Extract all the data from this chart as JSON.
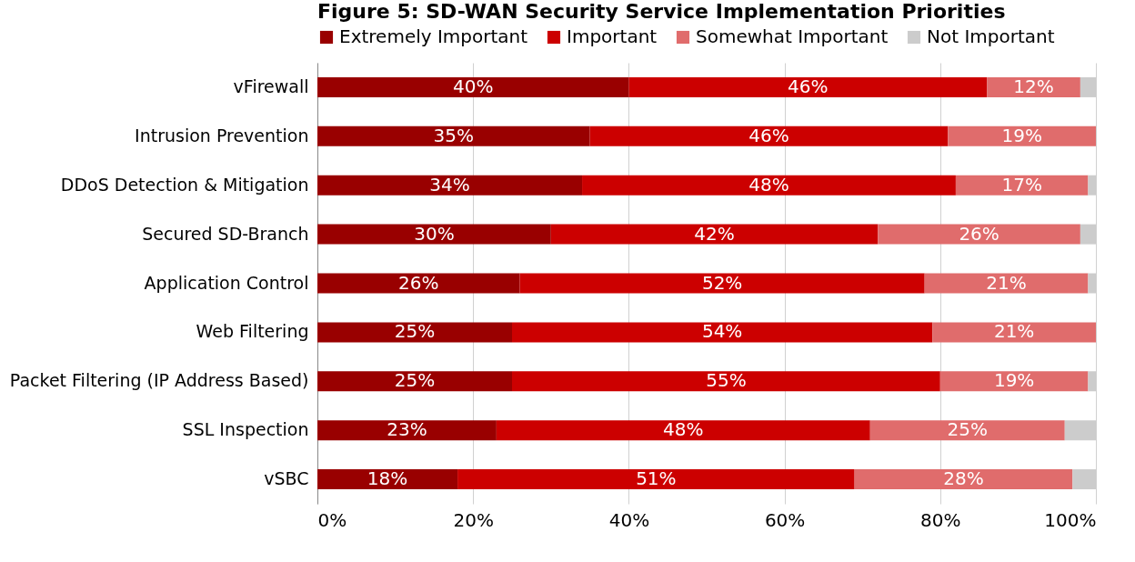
{
  "chart_data": {
    "type": "bar",
    "orientation": "horizontal",
    "stacked": true,
    "title": "Figure 5: SD-WAN Security Service Implementation Priorities",
    "categories": [
      "vFirewall",
      "Intrusion Prevention",
      "DDoS Detection & Mitigation",
      "Secured SD-Branch",
      "Application Control",
      "Web Filtering",
      "Packet Filtering (IP Address Based)",
      "SSL Inspection",
      "vSBC"
    ],
    "series": [
      {
        "name": "Extremely Important",
        "color": "#990000",
        "values": [
          40,
          35,
          34,
          30,
          26,
          25,
          25,
          23,
          18
        ],
        "value_labels": [
          "40%",
          "35%",
          "34%",
          "30%",
          "26%",
          "25%",
          "25%",
          "23%",
          "18%"
        ]
      },
      {
        "name": "Important",
        "color": "#cc0000",
        "values": [
          46,
          46,
          48,
          42,
          52,
          54,
          55,
          48,
          51
        ],
        "value_labels": [
          "46%",
          "46%",
          "48%",
          "42%",
          "52%",
          "54%",
          "55%",
          "48%",
          "51%"
        ]
      },
      {
        "name": "Somewhat Important",
        "color": "#e06c6c",
        "values": [
          12,
          19,
          17,
          26,
          21,
          21,
          19,
          25,
          28
        ],
        "value_labels": [
          "12%",
          "19%",
          "17%",
          "26%",
          "21%",
          "21%",
          "19%",
          "25%",
          "28%"
        ]
      },
      {
        "name": "Not Important",
        "color": "#cccccc",
        "values": [
          2,
          0,
          1,
          2,
          1,
          0,
          1,
          4,
          3
        ]
      }
    ],
    "xlim": [
      0,
      100
    ],
    "xticks": [
      {
        "value": 0,
        "label": "0%"
      },
      {
        "value": 20,
        "label": "20%"
      },
      {
        "value": 40,
        "label": "40%"
      },
      {
        "value": 60,
        "label": "60%"
      },
      {
        "value": 80,
        "label": "80%"
      },
      {
        "value": 100,
        "label": "100%"
      }
    ],
    "grid": "x",
    "legend": "top"
  }
}
